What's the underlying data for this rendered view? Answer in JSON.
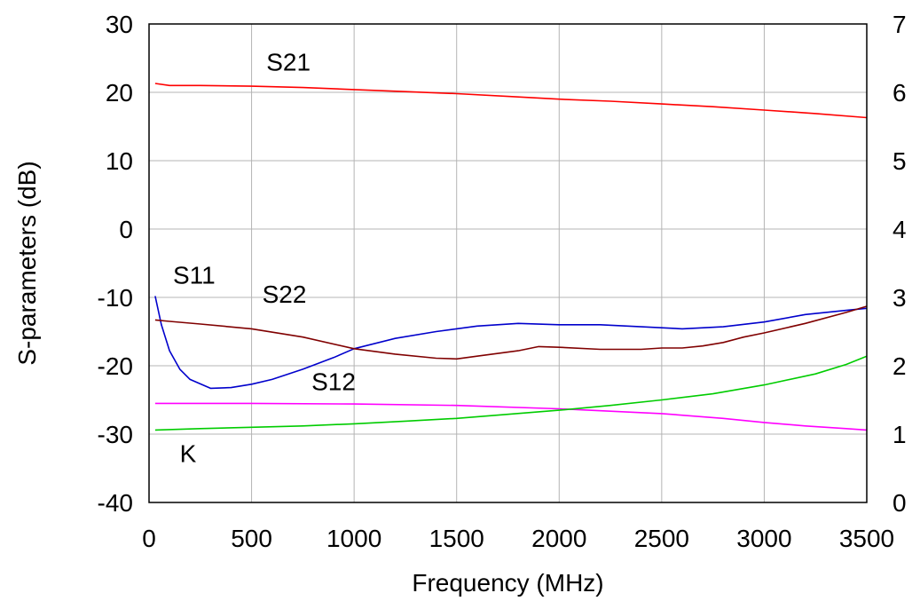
{
  "chart_data": {
    "type": "line",
    "xlabel": "Frequency (MHz)",
    "ylabel": "S-parameters (dB)",
    "y2label": "",
    "xlim": [
      0,
      3500
    ],
    "ylim": [
      -40,
      30
    ],
    "y2lim": [
      0,
      7
    ],
    "xticks": [
      "0",
      "500",
      "1000",
      "1500",
      "2000",
      "2500",
      "3000",
      "3500"
    ],
    "yticks": [
      "-40",
      "-30",
      "-20",
      "-10",
      "0",
      "10",
      "20",
      "30"
    ],
    "y2ticks": [
      "0",
      "1",
      "2",
      "3",
      "4",
      "5",
      "6",
      "7"
    ],
    "grid": true,
    "legend": "none",
    "series": [
      {
        "name": "S21",
        "axis": "left",
        "color": "#ff0000",
        "x": [
          30,
          100,
          250,
          500,
          750,
          1000,
          1250,
          1500,
          1750,
          2000,
          2250,
          2500,
          2750,
          3000,
          3250,
          3500
        ],
        "y": [
          21.3,
          21.0,
          21.0,
          20.9,
          20.7,
          20.4,
          20.1,
          19.8,
          19.4,
          19.0,
          18.7,
          18.3,
          17.9,
          17.4,
          16.9,
          16.3
        ]
      },
      {
        "name": "S11",
        "axis": "left",
        "color": "#0000cc",
        "x": [
          30,
          60,
          100,
          150,
          200,
          300,
          400,
          500,
          600,
          750,
          900,
          1000,
          1200,
          1400,
          1600,
          1800,
          2000,
          2200,
          2400,
          2600,
          2800,
          3000,
          3200,
          3400,
          3500
        ],
        "y": [
          -9.8,
          -14.0,
          -17.8,
          -20.5,
          -22.0,
          -23.3,
          -23.2,
          -22.7,
          -22.0,
          -20.5,
          -18.8,
          -17.5,
          -16.0,
          -15.0,
          -14.2,
          -13.8,
          -14.0,
          -14.0,
          -14.3,
          -14.6,
          -14.3,
          -13.6,
          -12.5,
          -11.9,
          -11.6
        ]
      },
      {
        "name": "S22",
        "axis": "left",
        "color": "#800000",
        "x": [
          30,
          100,
          250,
          500,
          750,
          1000,
          1200,
          1400,
          1500,
          1600,
          1800,
          1900,
          2000,
          2200,
          2400,
          2500,
          2600,
          2700,
          2800,
          2900,
          3000,
          3200,
          3400,
          3500
        ],
        "y": [
          -13.3,
          -13.5,
          -13.9,
          -14.6,
          -15.8,
          -17.5,
          -18.3,
          -18.9,
          -19.0,
          -18.6,
          -17.8,
          -17.2,
          -17.3,
          -17.6,
          -17.6,
          -17.4,
          -17.4,
          -17.1,
          -16.6,
          -15.8,
          -15.2,
          -13.8,
          -12.2,
          -11.3
        ]
      },
      {
        "name": "S12",
        "axis": "left",
        "color": "#ff00ff",
        "x": [
          30,
          500,
          1000,
          1500,
          2000,
          2500,
          2800,
          3000,
          3200,
          3400,
          3500
        ],
        "y": [
          -25.5,
          -25.5,
          -25.6,
          -25.8,
          -26.3,
          -27.0,
          -27.7,
          -28.3,
          -28.8,
          -29.2,
          -29.4
        ]
      },
      {
        "name": "K",
        "axis": "right",
        "color": "#00cc00",
        "x": [
          30,
          250,
          500,
          750,
          1000,
          1250,
          1500,
          1750,
          2000,
          2250,
          2500,
          2750,
          3000,
          3250,
          3400,
          3500
        ],
        "y": [
          1.06,
          1.08,
          1.1,
          1.12,
          1.15,
          1.19,
          1.23,
          1.29,
          1.35,
          1.42,
          1.5,
          1.59,
          1.72,
          1.88,
          2.02,
          2.14
        ]
      }
    ],
    "annotations": [
      {
        "text": "S21",
        "x": 680,
        "y": 24.5
      },
      {
        "text": "S11",
        "x": 220,
        "y": -6.7
      },
      {
        "text": "S22",
        "x": 660,
        "y": -9.5
      },
      {
        "text": "S12",
        "x": 900,
        "y": -22.3
      },
      {
        "text": "K",
        "x": 190,
        "y": -32.8
      }
    ]
  }
}
